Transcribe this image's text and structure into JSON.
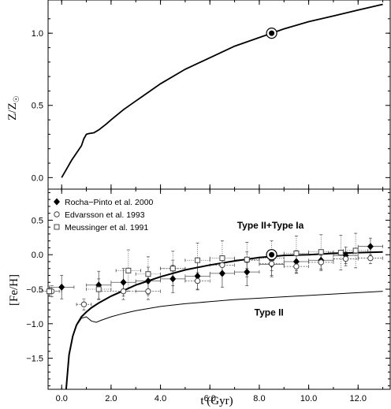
{
  "chart_data": [
    {
      "type": "line",
      "panel": "top",
      "ylabel": "Z/Z☉",
      "ylim": [
        -0.08,
        1.23
      ],
      "yticks": [
        0.0,
        0.5,
        1.0
      ],
      "ytick_labels": [
        "0.0",
        "0.5",
        "1.0"
      ],
      "xlim": [
        -0.55,
        13.3
      ],
      "series": [
        {
          "x": [
            0.0,
            0.2,
            0.4,
            0.6,
            0.8,
            0.9,
            1.0,
            1.1,
            1.3,
            1.5,
            1.8,
            2.0,
            2.5,
            3.0,
            3.5,
            4.0,
            5.0,
            6.0,
            7.0,
            8.0,
            8.5,
            9.0,
            10.0,
            11.0,
            12.0,
            13.0
          ],
          "y": [
            0.0,
            0.06,
            0.12,
            0.17,
            0.22,
            0.27,
            0.3,
            0.305,
            0.31,
            0.33,
            0.37,
            0.4,
            0.47,
            0.53,
            0.59,
            0.65,
            0.75,
            0.83,
            0.91,
            0.97,
            1.0,
            1.03,
            1.08,
            1.12,
            1.16,
            1.2
          ]
        }
      ],
      "sun_marker": {
        "x": 8.5,
        "y": 1.0
      }
    },
    {
      "type": "scatter",
      "panel": "bottom",
      "xlabel": "t (Gyr)",
      "ylabel": "[Fe/H]",
      "xlim": [
        -0.55,
        13.3
      ],
      "xticks": [
        0.0,
        2.0,
        4.0,
        6.0,
        8.0,
        10.0,
        12.0
      ],
      "xtick_labels": [
        "0.0",
        "2.0",
        "4.0",
        "6.0",
        "8.0",
        "10.0",
        "12.0"
      ],
      "ylim": [
        -1.95,
        0.95
      ],
      "yticks": [
        -1.5,
        -1.0,
        -0.5,
        0.0,
        0.5
      ],
      "ytick_labels": [
        "−1.5",
        "−1.0",
        "−0.5",
        "0.0",
        "0.5"
      ],
      "legend": {
        "position": "top-left",
        "entries": [
          {
            "label": "Rocha−Pinto et al. 2000",
            "marker": "diamond"
          },
          {
            "label": "Edvarsson et al. 1993",
            "marker": "circle"
          },
          {
            "label": "Meussinger et al. 1991",
            "marker": "square"
          }
        ]
      },
      "annotations": [
        {
          "text": "Type II+Type Ia",
          "x": 7.1,
          "y": 0.38
        },
        {
          "text": "Type II",
          "x": 7.8,
          "y": -0.88
        }
      ],
      "curves": [
        {
          "label": "Type II+Type Ia",
          "x": [
            0.18,
            0.3,
            0.45,
            0.6,
            0.8,
            1.0,
            1.2,
            1.5,
            2.0,
            2.5,
            3.0,
            3.5,
            4.0,
            5.0,
            6.0,
            7.0,
            8.0,
            9.0,
            10.0,
            11.0,
            12.0,
            13.0
          ],
          "y": [
            -1.95,
            -1.45,
            -1.18,
            -1.02,
            -0.9,
            -0.83,
            -0.77,
            -0.7,
            -0.6,
            -0.52,
            -0.44,
            -0.38,
            -0.32,
            -0.22,
            -0.15,
            -0.09,
            -0.04,
            -0.01,
            0.0,
            0.02,
            0.03,
            0.04
          ],
          "weight": "bold"
        },
        {
          "label": "Type II",
          "x": [
            0.18,
            0.3,
            0.45,
            0.6,
            0.8,
            1.0,
            1.2,
            1.4,
            1.6,
            2.0,
            2.5,
            3.0,
            4.0,
            5.0,
            6.0,
            7.0,
            8.0,
            9.0,
            10.0,
            11.0,
            12.0,
            13.0
          ],
          "y": [
            -1.95,
            -1.45,
            -1.18,
            -1.03,
            -0.92,
            -0.9,
            -0.96,
            -0.98,
            -0.95,
            -0.9,
            -0.85,
            -0.81,
            -0.75,
            -0.71,
            -0.68,
            -0.65,
            -0.63,
            -0.61,
            -0.59,
            -0.57,
            -0.55,
            -0.53
          ],
          "weight": "thin"
        }
      ],
      "series": [
        {
          "name": "Rocha−Pinto et al. 2000",
          "marker": "diamond",
          "points": [
            {
              "x": 0.0,
              "y": -0.47,
              "xerr": 0.5,
              "yerr": 0.17
            },
            {
              "x": 1.5,
              "y": -0.44,
              "xerr": 0.5,
              "yerr": 0.2
            },
            {
              "x": 2.5,
              "y": -0.4,
              "xerr": 0.5,
              "yerr": 0.2
            },
            {
              "x": 3.5,
              "y": -0.38,
              "xerr": 0.5,
              "yerr": 0.2
            },
            {
              "x": 4.5,
              "y": -0.35,
              "xerr": 0.5,
              "yerr": 0.2
            },
            {
              "x": 5.5,
              "y": -0.31,
              "xerr": 0.5,
              "yerr": 0.2
            },
            {
              "x": 6.5,
              "y": -0.27,
              "xerr": 0.5,
              "yerr": 0.2
            },
            {
              "x": 7.5,
              "y": -0.25,
              "xerr": 0.5,
              "yerr": 0.2
            },
            {
              "x": 8.5,
              "y": -0.14,
              "xerr": 0.5,
              "yerr": 0.18
            },
            {
              "x": 9.5,
              "y": -0.1,
              "xerr": 0.5,
              "yerr": 0.16
            },
            {
              "x": 10.5,
              "y": -0.08,
              "xerr": 0.5,
              "yerr": 0.15
            },
            {
              "x": 11.5,
              "y": -0.01,
              "xerr": 0.5,
              "yerr": 0.12
            },
            {
              "x": 12.5,
              "y": 0.12,
              "xerr": 0.5,
              "yerr": 0.12
            }
          ]
        },
        {
          "name": "Edvarsson et al. 1993",
          "marker": "circle",
          "points": [
            {
              "x": -0.4,
              "y": -0.53,
              "xerr": 0.4,
              "yerr": 0.08
            },
            {
              "x": 0.9,
              "y": -0.72,
              "xerr": 0.3,
              "yerr": 0.08
            },
            {
              "x": 2.5,
              "y": -0.53,
              "xerr": 1.0,
              "yerr": 0.12
            },
            {
              "x": 3.5,
              "y": -0.53,
              "xerr": 0.5,
              "yerr": 0.12
            },
            {
              "x": 4.5,
              "y": -0.2,
              "xerr": 0.5,
              "yerr": 0.12
            },
            {
              "x": 5.5,
              "y": -0.38,
              "xerr": 0.5,
              "yerr": 0.12
            },
            {
              "x": 6.5,
              "y": -0.15,
              "xerr": 0.5,
              "yerr": 0.12
            },
            {
              "x": 7.5,
              "y": -0.08,
              "xerr": 0.5,
              "yerr": 0.12
            },
            {
              "x": 8.5,
              "y": -0.13,
              "xerr": 0.5,
              "yerr": 0.1
            },
            {
              "x": 9.5,
              "y": -0.17,
              "xerr": 0.5,
              "yerr": 0.1
            },
            {
              "x": 10.5,
              "y": -0.11,
              "xerr": 0.5,
              "yerr": 0.1
            },
            {
              "x": 11.5,
              "y": -0.06,
              "xerr": 0.5,
              "yerr": 0.1
            },
            {
              "x": 12.5,
              "y": -0.05,
              "xerr": 0.5,
              "yerr": 0.08
            }
          ]
        },
        {
          "name": "Meussinger et al. 1991",
          "marker": "square",
          "points": [
            {
              "x": -0.5,
              "y": -0.53,
              "xerr": 0.4,
              "yerr": 0.05
            },
            {
              "x": 1.5,
              "y": -0.5,
              "xerr": 0.5,
              "yerr": 0.15
            },
            {
              "x": 2.7,
              "y": -0.23,
              "xerr": 0.5,
              "yerr": 0.3
            },
            {
              "x": 3.5,
              "y": -0.28,
              "xerr": 0.5,
              "yerr": 0.25
            },
            {
              "x": 4.5,
              "y": -0.2,
              "xerr": 0.5,
              "yerr": 0.25
            },
            {
              "x": 5.5,
              "y": -0.08,
              "xerr": 0.5,
              "yerr": 0.25
            },
            {
              "x": 6.5,
              "y": -0.05,
              "xerr": 0.5,
              "yerr": 0.25
            },
            {
              "x": 7.5,
              "y": -0.07,
              "xerr": 0.5,
              "yerr": 0.25
            },
            {
              "x": 8.5,
              "y": -0.05,
              "xerr": 0.5,
              "yerr": 0.25
            },
            {
              "x": 9.5,
              "y": 0.02,
              "xerr": 0.5,
              "yerr": 0.25
            },
            {
              "x": 10.5,
              "y": 0.04,
              "xerr": 0.5,
              "yerr": 0.25
            },
            {
              "x": 11.3,
              "y": 0.03,
              "xerr": 0.5,
              "yerr": 0.25
            },
            {
              "x": 11.9,
              "y": 0.06,
              "xerr": 0.5,
              "yerr": 0.25
            }
          ]
        }
      ],
      "sun_marker": {
        "x": 8.5,
        "y": 0.0
      }
    }
  ]
}
